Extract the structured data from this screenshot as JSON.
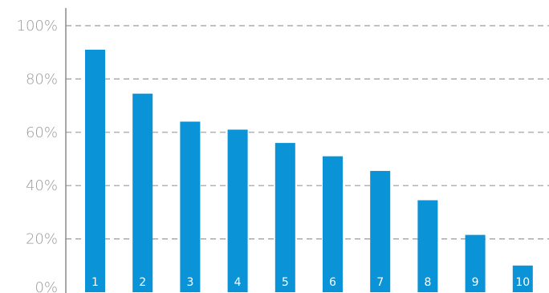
{
  "chart_data": {
    "type": "bar",
    "categories": [
      "1",
      "2",
      "3",
      "4",
      "5",
      "6",
      "7",
      "8",
      "9",
      "10"
    ],
    "values": [
      91,
      74.5,
      64,
      61,
      56,
      51,
      45.5,
      34.5,
      21.5,
      10
    ],
    "ylim": [
      0,
      100
    ],
    "y_ticks": [
      "0%",
      "20%",
      "40%",
      "60%",
      "80%",
      "100%"
    ],
    "y_tick_values": [
      0,
      20,
      40,
      60,
      80,
      100
    ],
    "grid": true,
    "bar_color": "#0a93d6",
    "title": "",
    "xlabel": "",
    "ylabel": ""
  }
}
